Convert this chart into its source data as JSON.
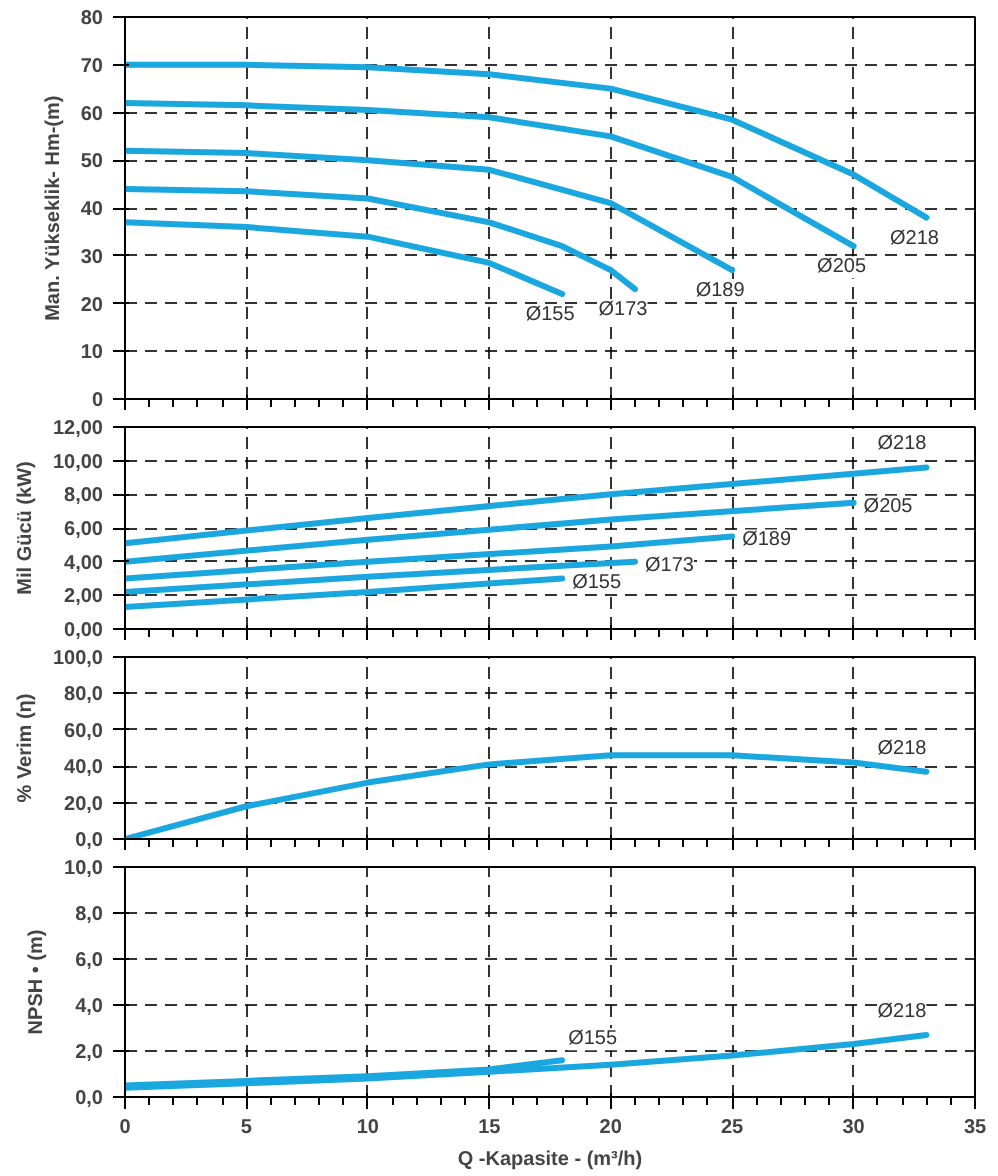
{
  "chart_data": [
    {
      "type": "line",
      "ylabel": "Man. Yükseklik- Hm-(m)",
      "xlim": [
        0,
        35
      ],
      "xticks": [
        0,
        5,
        10,
        15,
        20,
        25,
        30,
        35
      ],
      "ylim": [
        0,
        80
      ],
      "yticks": [
        0,
        10,
        20,
        30,
        40,
        50,
        60,
        70,
        80
      ],
      "grid": true,
      "legend": false,
      "tick_labels": "y",
      "line_style": "solid",
      "marker": "none",
      "series": [
        {
          "name": "Ø218",
          "color": "#1aa7e0",
          "x": [
            0,
            5,
            10,
            15,
            20,
            25,
            30,
            33
          ],
          "values": [
            70,
            70,
            69.5,
            68,
            65,
            58.5,
            47,
            38
          ]
        },
        {
          "name": "Ø205",
          "color": "#1aa7e0",
          "x": [
            0,
            5,
            10,
            15,
            20,
            25,
            30
          ],
          "values": [
            62,
            61.5,
            60.5,
            59,
            55,
            46.5,
            32
          ]
        },
        {
          "name": "Ø189",
          "color": "#1aa7e0",
          "x": [
            0,
            5,
            10,
            15,
            20,
            25
          ],
          "values": [
            52,
            51.5,
            50,
            48,
            41,
            27
          ]
        },
        {
          "name": "Ø173",
          "color": "#1aa7e0",
          "x": [
            0,
            5,
            10,
            15,
            18,
            20,
            21
          ],
          "values": [
            44,
            43.5,
            42,
            37,
            32,
            27,
            23
          ]
        },
        {
          "name": "Ø155",
          "color": "#1aa7e0",
          "x": [
            0,
            5,
            10,
            15,
            18
          ],
          "values": [
            37,
            36,
            34,
            28.5,
            22
          ]
        }
      ]
    },
    {
      "type": "line",
      "ylabel": "Mil Gücü (kW)",
      "xlim": [
        0,
        35
      ],
      "xticks": [
        0,
        5,
        10,
        15,
        20,
        25,
        30,
        35
      ],
      "ylim": [
        0,
        12
      ],
      "yticks": [
        {
          "value": 0,
          "label": "0,00"
        },
        {
          "value": 2,
          "label": "2,00"
        },
        {
          "value": 4,
          "label": "4,00"
        },
        {
          "value": 6,
          "label": "6,00"
        },
        {
          "value": 8,
          "label": "8,00"
        },
        {
          "value": 10,
          "label": "10,00"
        },
        {
          "value": 12,
          "label": "12,00"
        }
      ],
      "grid": true,
      "legend": false,
      "tick_labels": "y",
      "line_style": "solid",
      "marker": "none",
      "series": [
        {
          "name": "Ø218",
          "color": "#1aa7e0",
          "x": [
            0,
            10,
            20,
            33
          ],
          "values": [
            5.1,
            6.6,
            8,
            9.6
          ]
        },
        {
          "name": "Ø205",
          "color": "#1aa7e0",
          "x": [
            0,
            10,
            20,
            30
          ],
          "values": [
            4,
            5.3,
            6.5,
            7.5
          ]
        },
        {
          "name": "Ø189",
          "color": "#1aa7e0",
          "x": [
            0,
            10,
            20,
            25
          ],
          "values": [
            3,
            4,
            4.9,
            5.5
          ]
        },
        {
          "name": "Ø173",
          "color": "#1aa7e0",
          "x": [
            0,
            10,
            21
          ],
          "values": [
            2.2,
            3.1,
            4
          ]
        },
        {
          "name": "Ø155",
          "color": "#1aa7e0",
          "x": [
            0,
            10,
            18
          ],
          "values": [
            1.3,
            2.2,
            3
          ]
        }
      ]
    },
    {
      "type": "line",
      "ylabel": "% Verim (η)",
      "xlim": [
        0,
        35
      ],
      "xticks": [
        0,
        5,
        10,
        15,
        20,
        25,
        30,
        35
      ],
      "ylim": [
        0,
        100
      ],
      "yticks": [
        {
          "value": 0,
          "label": "0,0"
        },
        {
          "value": 20,
          "label": "20,0"
        },
        {
          "value": 40,
          "label": "40,0"
        },
        {
          "value": 60,
          "label": "60,0"
        },
        {
          "value": 80,
          "label": "80,0"
        },
        {
          "value": 100,
          "label": "100,0"
        }
      ],
      "grid": true,
      "legend": false,
      "tick_labels": "y",
      "line_style": "solid",
      "marker": "none",
      "series": [
        {
          "name": "Ø218",
          "color": "#1aa7e0",
          "x": [
            0,
            5,
            10,
            15,
            20,
            23,
            25,
            30,
            33
          ],
          "values": [
            0,
            18,
            31,
            41,
            46,
            46,
            46,
            42,
            37
          ]
        }
      ]
    },
    {
      "type": "line",
      "ylabel": "NPSH • (m)",
      "xlabel": "Q -Kapasite - (m³/h)",
      "xlim": [
        0,
        35
      ],
      "xticks": [
        0,
        5,
        10,
        15,
        20,
        25,
        30,
        35
      ],
      "ylim": [
        0,
        10
      ],
      "yticks": [
        {
          "value": 0,
          "label": "0,0"
        },
        {
          "value": 2,
          "label": "2,0"
        },
        {
          "value": 4,
          "label": "4,0"
        },
        {
          "value": 6,
          "label": "6,0"
        },
        {
          "value": 8,
          "label": "8,0"
        },
        {
          "value": 10,
          "label": "10,0"
        }
      ],
      "grid": true,
      "legend": false,
      "line_style": "solid",
      "marker": "none",
      "series": [
        {
          "name": "Ø155",
          "color": "#1aa7e0",
          "x": [
            0,
            5,
            10,
            15,
            18
          ],
          "values": [
            0.5,
            0.7,
            0.9,
            1.2,
            1.6
          ]
        },
        {
          "name": "Ø218",
          "color": "#1aa7e0",
          "x": [
            0,
            5,
            10,
            15,
            20,
            25,
            30,
            33
          ],
          "values": [
            0.4,
            0.6,
            0.8,
            1.1,
            1.4,
            1.8,
            2.3,
            2.7
          ]
        }
      ]
    }
  ]
}
